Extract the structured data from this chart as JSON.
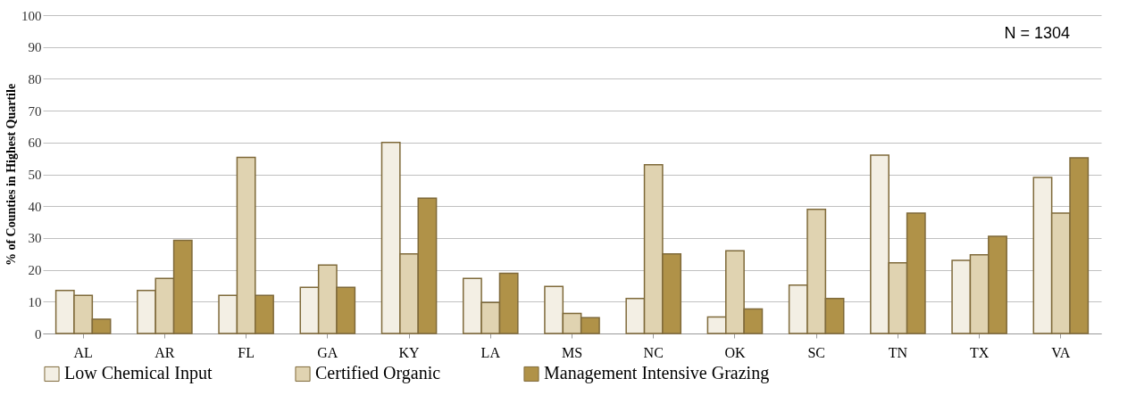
{
  "chart_data": {
    "type": "bar",
    "ylabel": "% of Counties in Highest Quartile",
    "annotations": [
      "N = 1304"
    ],
    "categories": [
      "AL",
      "AR",
      "FL",
      "GA",
      "KY",
      "LA",
      "MS",
      "NC",
      "OK",
      "SC",
      "TN",
      "TX",
      "VA"
    ],
    "series": [
      {
        "name": "Low Chemical Input",
        "color": "#f3efe4",
        "values": [
          13.5,
          13.5,
          12,
          14.5,
          60,
          17.3,
          14.8,
          11,
          5.2,
          15.2,
          56,
          23,
          49
        ]
      },
      {
        "name": "Certified Organic",
        "color": "#e0d3b1",
        "values": [
          12,
          17.3,
          55.3,
          21.5,
          25,
          9.7,
          6.3,
          53,
          26,
          39,
          22.2,
          24.7,
          37.8
        ]
      },
      {
        "name": "Management Intensive Grazing",
        "color": "#b09248",
        "values": [
          4.5,
          29.3,
          12,
          14.5,
          42.5,
          18.9,
          5,
          25,
          7.7,
          11,
          37.8,
          30.5,
          55.2
        ]
      }
    ],
    "ylim": [
      0,
      100
    ],
    "yticks": [
      0,
      10,
      20,
      30,
      40,
      50,
      60,
      70,
      80,
      90,
      100
    ],
    "grid": "y",
    "legend": "bottom"
  }
}
